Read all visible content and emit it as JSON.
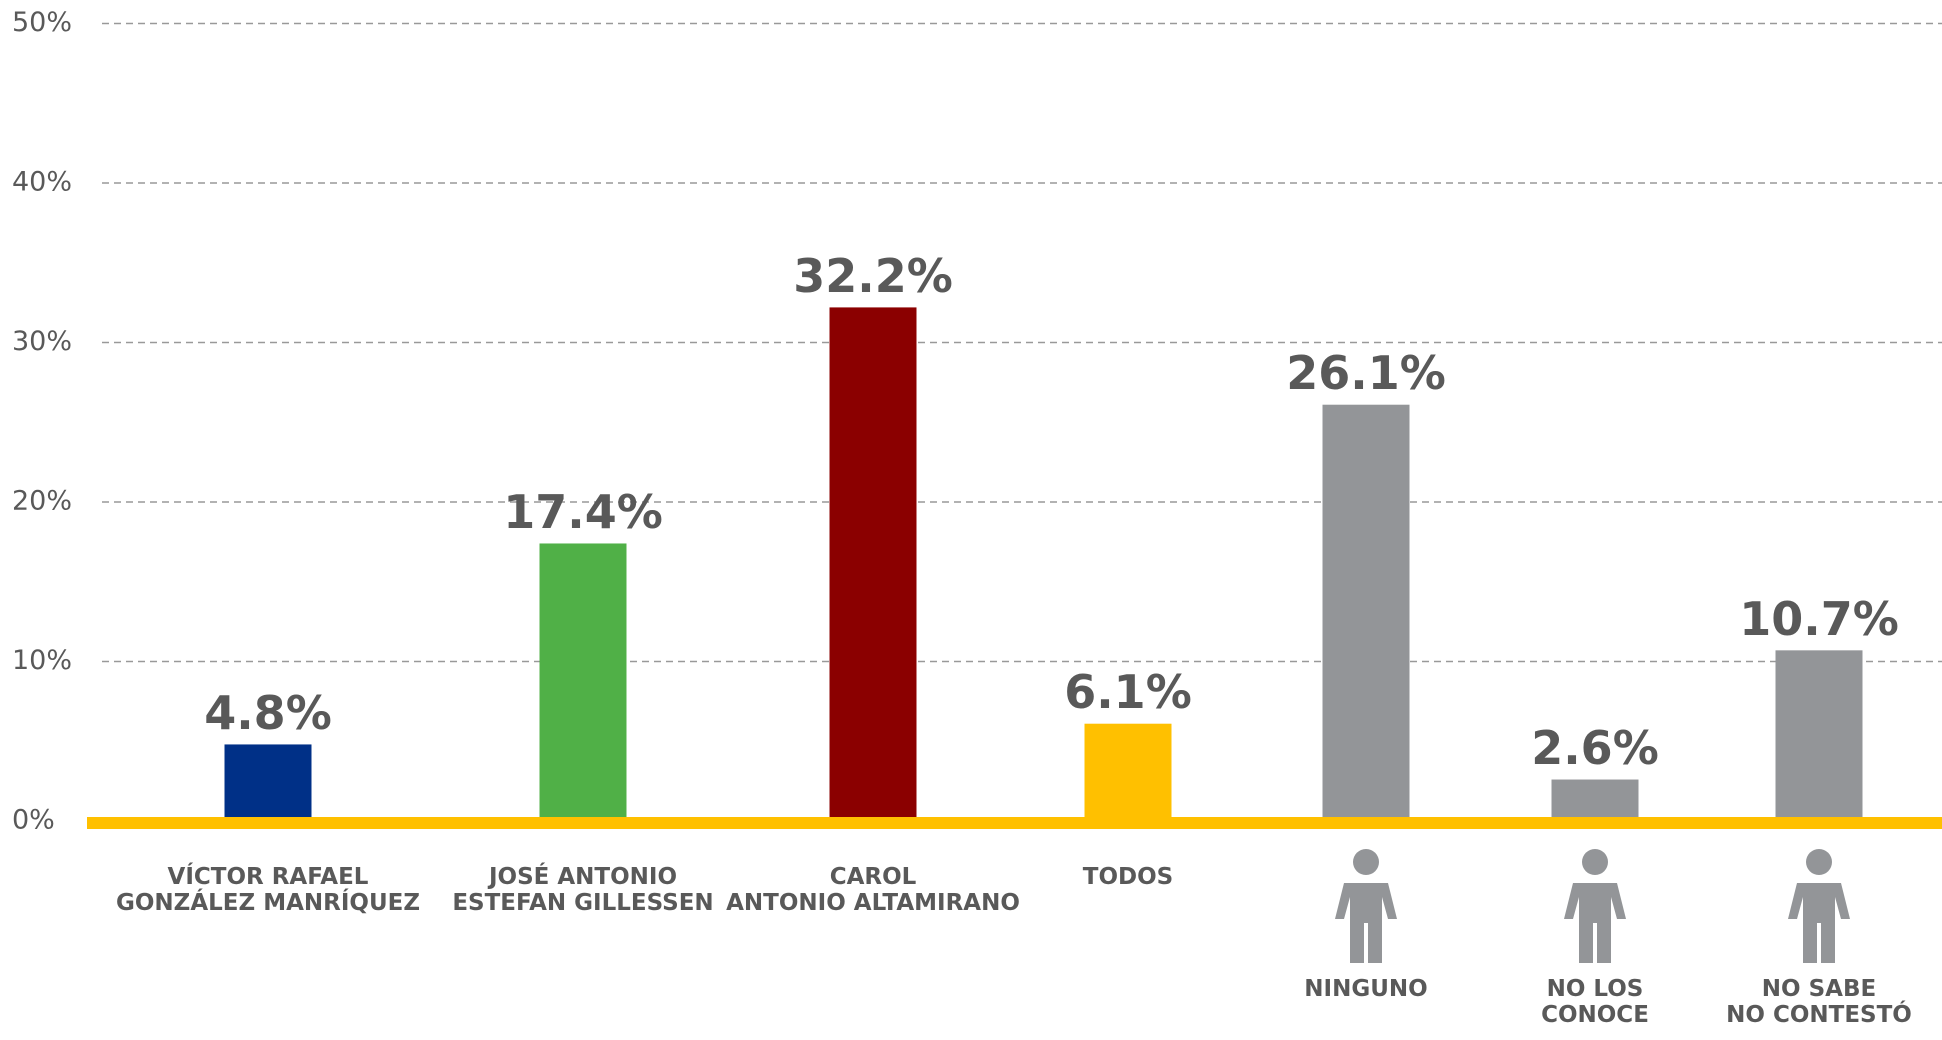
{
  "chart_data": {
    "type": "bar",
    "categories": [
      "VÍCTOR RAFAEL\nGONZÁLEZ MANRÍQUEZ",
      "JOSÉ ANTONIO\nESTEFAN GILLESSEN",
      "CAROL\nANTONIO ALTAMIRANO",
      "TODOS",
      "NINGUNO",
      "NO LOS\nCONOCE",
      "NO SABE\nNO CONTESTÓ"
    ],
    "values": [
      4.8,
      17.4,
      32.2,
      6.1,
      26.1,
      2.6,
      10.7
    ],
    "value_labels": [
      "4.8%",
      "17.4%",
      "32.2%",
      "6.1%",
      "26.1%",
      "2.6%",
      "10.7%"
    ],
    "colors": [
      "#003087",
      "#50b047",
      "#8b0000",
      "#ffc000",
      "#939598",
      "#939598",
      "#939598"
    ],
    "ylim": [
      0,
      50
    ],
    "yticks": [
      {
        "value": 0,
        "label": "0%"
      },
      {
        "value": 10,
        "label": "10%"
      },
      {
        "value": 20,
        "label": "20%"
      },
      {
        "value": 30,
        "label": "30%"
      },
      {
        "value": 40,
        "label": "40%"
      },
      {
        "value": 50,
        "label": "50%"
      }
    ],
    "grid": true
  }
}
